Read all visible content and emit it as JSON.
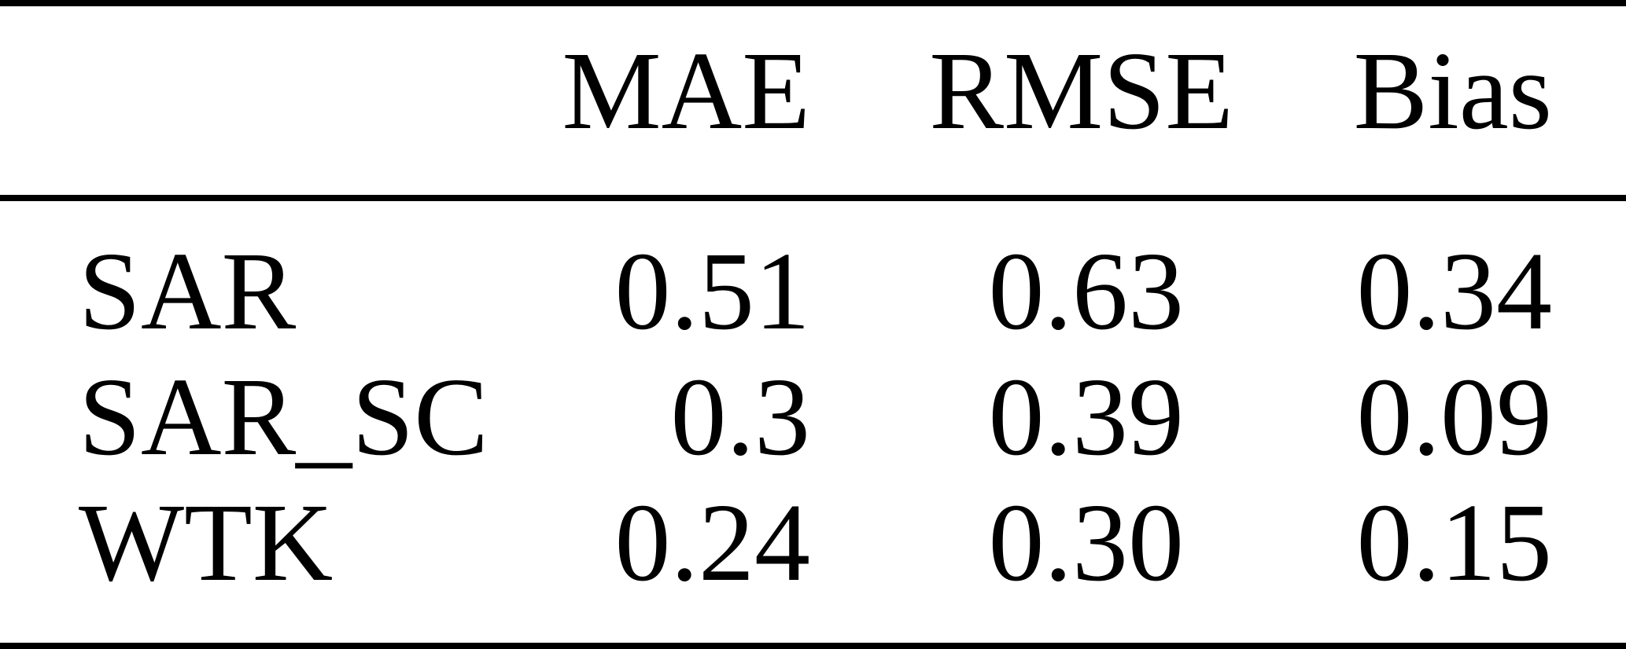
{
  "table": {
    "columns": [
      "",
      "MAE",
      "RMSE",
      "Bias"
    ],
    "rows": [
      {
        "label": "SAR",
        "values": [
          "0.51",
          "0.63",
          "0.34"
        ]
      },
      {
        "label": "SAR_SC",
        "values": [
          "0.3",
          "0.39",
          "0.09"
        ]
      },
      {
        "label": "WTK",
        "values": [
          "0.24",
          "0.30",
          "0.15"
        ]
      }
    ]
  },
  "colors": {
    "text": "#000000",
    "background": "#ffffff",
    "rule": "#000000"
  }
}
